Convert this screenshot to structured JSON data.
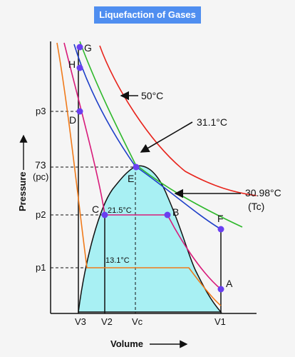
{
  "title": "Liquefaction of Gases",
  "axes": {
    "x_label": "Volume",
    "y_label": "Pressure"
  },
  "y_ticks": {
    "p3": "p3",
    "p73": "73",
    "pc": "(pc)",
    "p2": "p2",
    "p1": "p1"
  },
  "x_ticks": {
    "v3": "V3",
    "v2": "V2",
    "vc": "Vc",
    "v1": "V1"
  },
  "points": {
    "G": "G",
    "H": "H",
    "D": "D",
    "E": "E",
    "C": "C",
    "B": "B",
    "F": "F",
    "A": "A"
  },
  "isotherms": {
    "t50": "50°C",
    "t31_1": "31.1°C",
    "t30_98": "30.98°C",
    "tc": "(Tc)",
    "t21_5": "21.5°C",
    "t13_1": "13.1°C"
  },
  "colors": {
    "banner": "#4f8ef0",
    "curve_50": "#e8241c",
    "curve_31_1": "#2fb82c",
    "curve_30_98": "#1e3fc8",
    "curve_21_5": "#d81b7a",
    "curve_13_1": "#f07a1a",
    "two_phase_fill": "#a8f0f3",
    "point": "#6a3ff0"
  }
}
